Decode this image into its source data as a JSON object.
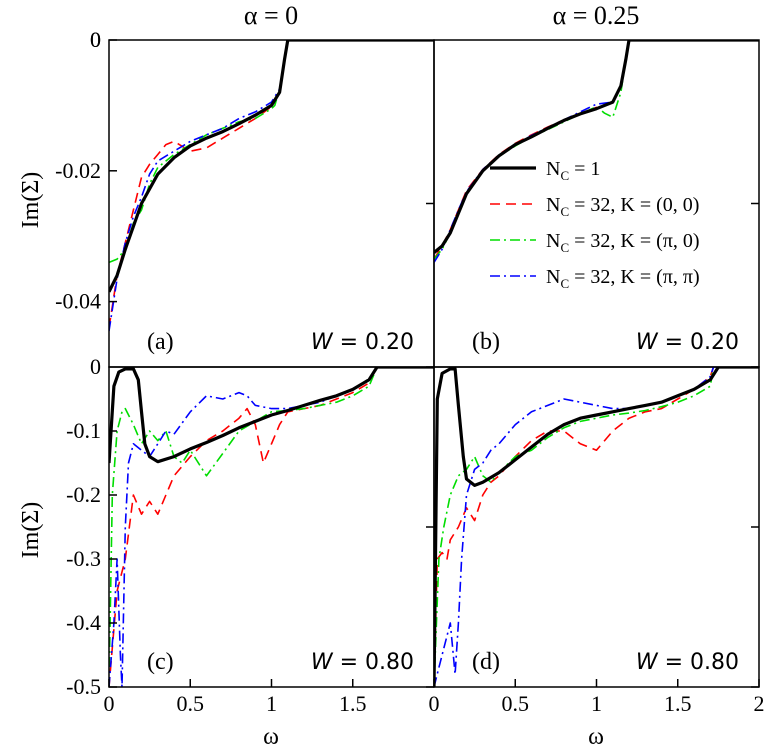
{
  "column_titles": [
    "α = 0",
    "α = 0.25"
  ],
  "y_axis_label": "Im(Σ)",
  "x_axis_label": "ω",
  "legend": [
    {
      "label_main": "N",
      "label_sub": "C",
      "label_rest": " = 1",
      "color": "#000000",
      "dash": "solid"
    },
    {
      "label_main": "N",
      "label_sub": "C",
      "label_rest": " = 32, K = (0, 0)",
      "color": "#ff0000",
      "dash": "dashed"
    },
    {
      "label_main": "N",
      "label_sub": "C",
      "label_rest": " = 32, K = (π, 0)",
      "color": "#00dd00",
      "dash": "dashdot"
    },
    {
      "label_main": "N",
      "label_sub": "C",
      "label_rest": " = 32, K = (π, π)",
      "color": "#0000ff",
      "dash": "dashdot"
    }
  ],
  "chart_data": [
    {
      "type": "line",
      "panel": "a",
      "tag": "(a)",
      "w_label": "W",
      "w_rest": " = 0.20",
      "xlim": [
        0,
        2
      ],
      "ylim": [
        -0.05,
        0
      ],
      "yticks": [
        0,
        -0.02,
        -0.04
      ],
      "ytick_labels": [
        "0",
        "-0.02",
        "-0.04"
      ],
      "xticks": [],
      "series": [
        {
          "name": "NC=1",
          "x": [
            0,
            0.05,
            0.1,
            0.15,
            0.2,
            0.3,
            0.4,
            0.5,
            0.6,
            0.7,
            0.8,
            0.9,
            1.0,
            1.05,
            1.08,
            1.1,
            1.15,
            1.5,
            2.0
          ],
          "y": [
            -0.0385,
            -0.036,
            -0.032,
            -0.0285,
            -0.025,
            -0.0205,
            -0.018,
            -0.0162,
            -0.015,
            -0.014,
            -0.0128,
            -0.0115,
            -0.01,
            -0.008,
            -0.003,
            0,
            0,
            0,
            0
          ]
        },
        {
          "name": "K=(0,0)",
          "x": [
            0,
            0.05,
            0.1,
            0.15,
            0.2,
            0.25,
            0.3,
            0.35,
            0.4,
            0.5,
            0.6,
            0.7,
            0.8,
            0.9,
            1.0,
            1.05,
            1.08,
            1.1,
            2.0
          ],
          "y": [
            -0.044,
            -0.036,
            -0.031,
            -0.026,
            -0.021,
            -0.019,
            -0.0175,
            -0.016,
            -0.0155,
            -0.017,
            -0.0165,
            -0.015,
            -0.0135,
            -0.012,
            -0.0102,
            -0.008,
            -0.003,
            0,
            0
          ]
        },
        {
          "name": "K=(pi,0)",
          "x": [
            0,
            0.05,
            0.1,
            0.15,
            0.2,
            0.25,
            0.3,
            0.4,
            0.5,
            0.6,
            0.7,
            0.8,
            0.9,
            1.0,
            1.02,
            1.05,
            1.08,
            1.1,
            2.0
          ],
          "y": [
            -0.034,
            -0.0335,
            -0.032,
            -0.028,
            -0.026,
            -0.022,
            -0.0195,
            -0.0175,
            -0.016,
            -0.0145,
            -0.0135,
            -0.0125,
            -0.012,
            -0.0105,
            -0.01,
            -0.0075,
            -0.003,
            0,
            0
          ]
        },
        {
          "name": "K=(pi,pi)",
          "x": [
            0,
            0.05,
            0.1,
            0.15,
            0.2,
            0.25,
            0.3,
            0.4,
            0.5,
            0.6,
            0.7,
            0.8,
            0.9,
            1.0,
            1.05,
            1.08,
            1.1,
            2.0
          ],
          "y": [
            -0.0445,
            -0.0365,
            -0.031,
            -0.027,
            -0.024,
            -0.0205,
            -0.0185,
            -0.017,
            -0.0155,
            -0.0145,
            -0.0135,
            -0.012,
            -0.011,
            -0.0095,
            -0.0075,
            -0.003,
            0,
            0
          ]
        }
      ]
    },
    {
      "type": "line",
      "panel": "b",
      "tag": "(b)",
      "w_label": "W",
      "w_rest": " = 0.20",
      "xlim": [
        0,
        2
      ],
      "ylim": [
        -0.05,
        0
      ],
      "yticks": [],
      "ytick_labels": [],
      "xticks": [],
      "series": [
        {
          "name": "NC=1",
          "x": [
            0,
            0.05,
            0.1,
            0.15,
            0.2,
            0.3,
            0.4,
            0.5,
            0.6,
            0.7,
            0.8,
            0.9,
            1.0,
            1.1,
            1.15,
            1.18,
            1.2,
            2.0
          ],
          "y": [
            -0.0325,
            -0.0315,
            -0.0295,
            -0.0265,
            -0.0235,
            -0.02,
            -0.0177,
            -0.016,
            -0.0148,
            -0.0135,
            -0.0123,
            -0.0113,
            -0.0105,
            -0.0095,
            -0.007,
            -0.003,
            0,
            0
          ]
        },
        {
          "name": "K=(0,0)",
          "x": [
            0,
            0.05,
            0.1,
            0.15,
            0.2,
            0.3,
            0.4,
            0.5,
            0.6,
            0.7,
            0.8,
            0.9,
            1.0,
            1.1,
            1.15,
            1.18,
            1.2,
            2.0
          ],
          "y": [
            -0.0335,
            -0.0315,
            -0.029,
            -0.026,
            -0.023,
            -0.0198,
            -0.0175,
            -0.0158,
            -0.0145,
            -0.0133,
            -0.0122,
            -0.0112,
            -0.0103,
            -0.0095,
            -0.007,
            -0.003,
            0,
            0
          ]
        },
        {
          "name": "K=(pi,0)",
          "x": [
            0,
            0.05,
            0.1,
            0.15,
            0.2,
            0.3,
            0.4,
            0.5,
            0.6,
            0.7,
            0.8,
            0.9,
            1.0,
            1.05,
            1.1,
            1.15,
            1.18,
            1.2,
            2.0
          ],
          "y": [
            -0.0335,
            -0.032,
            -0.0295,
            -0.0265,
            -0.0235,
            -0.02,
            -0.0178,
            -0.0162,
            -0.0148,
            -0.0137,
            -0.0125,
            -0.0113,
            -0.0102,
            -0.0112,
            -0.0118,
            -0.008,
            -0.003,
            0,
            0
          ]
        },
        {
          "name": "K=(pi,pi)",
          "x": [
            0,
            0.05,
            0.1,
            0.15,
            0.2,
            0.3,
            0.4,
            0.5,
            0.6,
            0.7,
            0.8,
            0.9,
            1.0,
            1.1,
            1.15,
            1.18,
            1.2,
            2.0
          ],
          "y": [
            -0.034,
            -0.032,
            -0.029,
            -0.026,
            -0.0232,
            -0.0198,
            -0.0176,
            -0.016,
            -0.0146,
            -0.0134,
            -0.0122,
            -0.011,
            -0.0098,
            -0.0095,
            -0.007,
            -0.003,
            0,
            0
          ]
        }
      ]
    },
    {
      "type": "line",
      "panel": "c",
      "tag": "(c)",
      "w_label": "W",
      "w_rest": " = 0.80",
      "xlim": [
        0,
        2
      ],
      "ylim": [
        -0.5,
        0
      ],
      "yticks": [
        -0.1,
        -0.2,
        -0.3,
        -0.4,
        -0.5
      ],
      "ytick_labels": [
        "-0.1",
        "-0.2",
        "-0.3",
        "-0.4",
        "-0.5"
      ],
      "xticks": [
        0,
        0.5,
        1,
        1.5
      ],
      "xtick_labels": [
        "0",
        "0.5",
        "1",
        "1.5"
      ],
      "series": [
        {
          "name": "NC=1",
          "x": [
            0,
            0.03,
            0.06,
            0.1,
            0.15,
            0.18,
            0.2,
            0.22,
            0.25,
            0.3,
            0.4,
            0.5,
            0.6,
            0.7,
            0.8,
            0.9,
            1.0,
            1.1,
            1.2,
            1.3,
            1.4,
            1.5,
            1.6,
            1.65,
            2.0
          ],
          "y": [
            -0.15,
            -0.03,
            -0.008,
            -0.003,
            -0.003,
            -0.02,
            -0.07,
            -0.12,
            -0.14,
            -0.148,
            -0.14,
            -0.128,
            -0.118,
            -0.107,
            -0.095,
            -0.085,
            -0.075,
            -0.068,
            -0.06,
            -0.052,
            -0.045,
            -0.035,
            -0.02,
            0,
            0
          ]
        },
        {
          "name": "K=(0,0)",
          "x": [
            0,
            0.05,
            0.1,
            0.15,
            0.2,
            0.25,
            0.3,
            0.35,
            0.4,
            0.5,
            0.6,
            0.7,
            0.8,
            0.85,
            0.9,
            0.95,
            1.0,
            1.05,
            1.1,
            1.2,
            1.3,
            1.4,
            1.5,
            1.6,
            1.65,
            2.0
          ],
          "y": [
            -0.5,
            -0.35,
            -0.3,
            -0.2,
            -0.23,
            -0.21,
            -0.23,
            -0.2,
            -0.17,
            -0.14,
            -0.115,
            -0.1,
            -0.08,
            -0.065,
            -0.09,
            -0.15,
            -0.12,
            -0.09,
            -0.07,
            -0.065,
            -0.06,
            -0.05,
            -0.04,
            -0.025,
            0,
            0
          ]
        },
        {
          "name": "K=(pi,0)",
          "x": [
            0,
            0.02,
            0.05,
            0.08,
            0.1,
            0.15,
            0.2,
            0.25,
            0.3,
            0.35,
            0.4,
            0.45,
            0.5,
            0.6,
            0.7,
            0.8,
            0.9,
            1.0,
            1.1,
            1.2,
            1.3,
            1.4,
            1.5,
            1.6,
            1.65,
            2.0
          ],
          "y": [
            -0.5,
            -0.2,
            -0.1,
            -0.07,
            -0.065,
            -0.09,
            -0.12,
            -0.1,
            -0.115,
            -0.1,
            -0.14,
            -0.15,
            -0.13,
            -0.17,
            -0.135,
            -0.1,
            -0.085,
            -0.07,
            -0.068,
            -0.065,
            -0.06,
            -0.055,
            -0.045,
            -0.03,
            0,
            0
          ]
        },
        {
          "name": "K=(pi,pi)",
          "x": [
            0,
            0.03,
            0.05,
            0.07,
            0.08,
            0.1,
            0.12,
            0.15,
            0.2,
            0.25,
            0.3,
            0.35,
            0.4,
            0.5,
            0.6,
            0.7,
            0.8,
            0.85,
            0.9,
            1.0,
            1.1,
            1.2,
            1.3,
            1.4,
            1.5,
            1.6,
            1.65,
            2.0
          ],
          "y": [
            -0.5,
            -0.4,
            -0.3,
            -0.45,
            -0.5,
            -0.25,
            -0.15,
            -0.12,
            -0.13,
            -0.14,
            -0.12,
            -0.1,
            -0.105,
            -0.07,
            -0.045,
            -0.05,
            -0.04,
            -0.045,
            -0.06,
            -0.065,
            -0.065,
            -0.06,
            -0.055,
            -0.045,
            -0.035,
            -0.02,
            0,
            0
          ]
        }
      ]
    },
    {
      "type": "line",
      "panel": "d",
      "tag": "(d)",
      "w_label": "W",
      "w_rest": " = 0.80",
      "xlim": [
        0,
        2
      ],
      "ylim": [
        -0.5,
        0
      ],
      "yticks": [],
      "ytick_labels": [],
      "xticks": [
        0,
        0.5,
        1,
        1.5,
        2
      ],
      "xtick_labels": [
        "0",
        "0.5",
        "1",
        "1.5",
        "2"
      ],
      "series": [
        {
          "name": "NC=1",
          "x": [
            0,
            0.02,
            0.05,
            0.1,
            0.13,
            0.15,
            0.18,
            0.2,
            0.25,
            0.3,
            0.4,
            0.5,
            0.6,
            0.7,
            0.8,
            0.9,
            1.0,
            1.1,
            1.2,
            1.3,
            1.4,
            1.5,
            1.6,
            1.7,
            1.75,
            2.0
          ],
          "y": [
            -0.5,
            -0.05,
            -0.01,
            -0.003,
            -0.003,
            -0.06,
            -0.14,
            -0.175,
            -0.185,
            -0.18,
            -0.165,
            -0.145,
            -0.125,
            -0.105,
            -0.09,
            -0.08,
            -0.075,
            -0.07,
            -0.065,
            -0.06,
            -0.055,
            -0.045,
            -0.035,
            -0.02,
            0,
            0
          ]
        },
        {
          "name": "K=(0,0)",
          "x": [
            0,
            0.02,
            0.05,
            0.08,
            0.1,
            0.15,
            0.2,
            0.25,
            0.3,
            0.35,
            0.4,
            0.5,
            0.6,
            0.7,
            0.8,
            0.9,
            1.0,
            1.1,
            1.2,
            1.3,
            1.4,
            1.5,
            1.6,
            1.7,
            1.72,
            2.0
          ],
          "y": [
            -0.5,
            -0.3,
            -0.29,
            -0.3,
            -0.27,
            -0.25,
            -0.22,
            -0.24,
            -0.2,
            -0.18,
            -0.17,
            -0.14,
            -0.115,
            -0.1,
            -0.1,
            -0.12,
            -0.13,
            -0.1,
            -0.08,
            -0.07,
            -0.065,
            -0.05,
            -0.035,
            -0.015,
            0,
            0
          ]
        },
        {
          "name": "K=(pi,0)",
          "x": [
            0,
            0.03,
            0.06,
            0.1,
            0.15,
            0.2,
            0.25,
            0.3,
            0.35,
            0.4,
            0.5,
            0.6,
            0.7,
            0.8,
            0.9,
            1.0,
            1.1,
            1.2,
            1.3,
            1.4,
            1.5,
            1.6,
            1.7,
            1.72,
            2.0
          ],
          "y": [
            -0.5,
            -0.3,
            -0.25,
            -0.2,
            -0.17,
            -0.16,
            -0.14,
            -0.17,
            -0.18,
            -0.165,
            -0.14,
            -0.13,
            -0.11,
            -0.095,
            -0.085,
            -0.08,
            -0.075,
            -0.072,
            -0.068,
            -0.062,
            -0.055,
            -0.045,
            -0.03,
            0,
            0
          ]
        },
        {
          "name": "K=(pi,pi)",
          "x": [
            0,
            0.05,
            0.1,
            0.13,
            0.15,
            0.17,
            0.2,
            0.25,
            0.3,
            0.35,
            0.4,
            0.5,
            0.6,
            0.7,
            0.8,
            0.9,
            1.0,
            1.1,
            1.2,
            1.3,
            1.4,
            1.5,
            1.6,
            1.7,
            1.72,
            2.0
          ],
          "y": [
            -0.5,
            -0.45,
            -0.4,
            -0.48,
            -0.4,
            -0.3,
            -0.2,
            -0.16,
            -0.15,
            -0.13,
            -0.12,
            -0.09,
            -0.07,
            -0.06,
            -0.05,
            -0.055,
            -0.06,
            -0.065,
            -0.065,
            -0.06,
            -0.055,
            -0.045,
            -0.035,
            -0.015,
            0,
            0
          ]
        }
      ]
    }
  ]
}
